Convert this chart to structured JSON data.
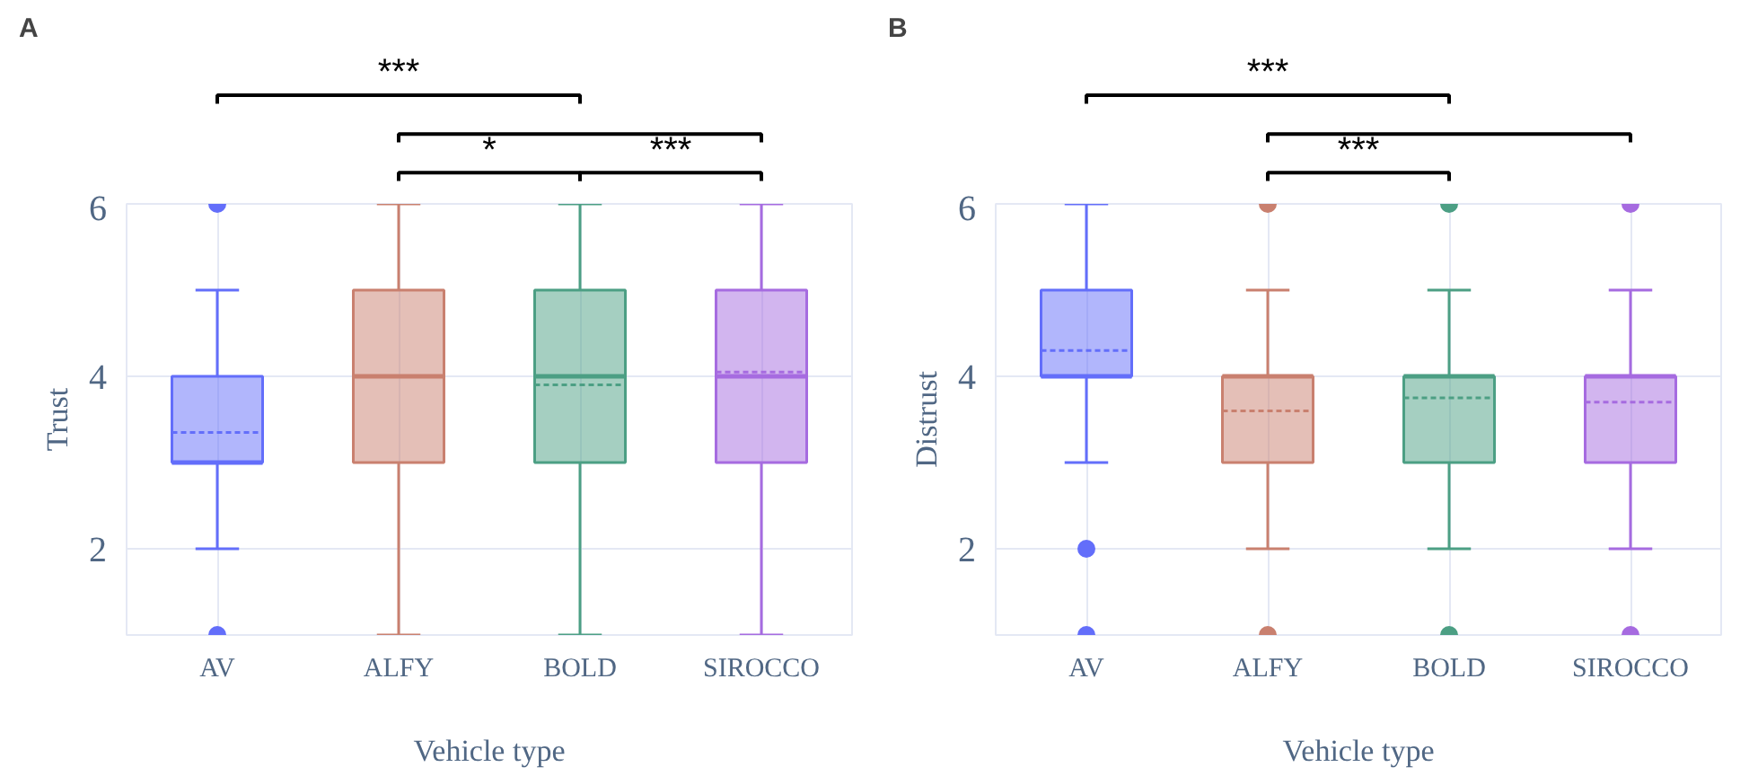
{
  "chart_data": [
    {
      "type": "box",
      "title": "A",
      "xlabel": "Vehicle type",
      "ylabel": "Trust",
      "categories": [
        "AV",
        "ALFY",
        "BOLD",
        "SIROCCO"
      ],
      "colors": [
        "#636efa",
        "#c9806f",
        "#4c9f84",
        "#a66be0"
      ],
      "ylim": [
        1,
        6
      ],
      "yticks": [
        2,
        4,
        6
      ],
      "grid": true,
      "boxes": [
        {
          "low": 2,
          "q1": 3,
          "median": 3,
          "q3": 4,
          "high": 5,
          "mean": 3.35,
          "outliers": [
            1,
            6
          ]
        },
        {
          "low": 1,
          "q1": 3,
          "median": 4,
          "q3": 5,
          "high": 6,
          "mean": 4.0
        },
        {
          "low": 1,
          "q1": 3,
          "median": 4,
          "q3": 5,
          "high": 6,
          "mean": 3.9
        },
        {
          "low": 1,
          "q1": 3,
          "median": 4,
          "q3": 5,
          "high": 6,
          "mean": 4.05
        }
      ],
      "annotations": [
        "***",
        "*",
        "***"
      ]
    },
    {
      "type": "box",
      "title": "B",
      "xlabel": "Vehicle type",
      "ylabel": "Distrust",
      "categories": [
        "AV",
        "ALFY",
        "BOLD",
        "SIROCCO"
      ],
      "colors": [
        "#636efa",
        "#c9806f",
        "#4c9f84",
        "#a66be0"
      ],
      "ylim": [
        1,
        6
      ],
      "yticks": [
        2,
        4,
        6
      ],
      "grid": true,
      "boxes": [
        {
          "low": 3,
          "q1": 4,
          "median": 4,
          "q3": 5,
          "high": 6,
          "mean": 4.3,
          "outliers": [
            2,
            1
          ]
        },
        {
          "low": 2,
          "q1": 3,
          "median": 4,
          "q3": 4,
          "high": 5,
          "mean": 3.6,
          "outliers": [
            6,
            1
          ]
        },
        {
          "low": 2,
          "q1": 3,
          "median": 4,
          "q3": 4,
          "high": 5,
          "mean": 3.75,
          "outliers": [
            6,
            1
          ]
        },
        {
          "low": 2,
          "q1": 3,
          "median": 4,
          "q3": 4,
          "high": 5,
          "mean": 3.7,
          "outliers": [
            6,
            1
          ]
        }
      ],
      "annotations": [
        "***",
        "***"
      ]
    }
  ]
}
